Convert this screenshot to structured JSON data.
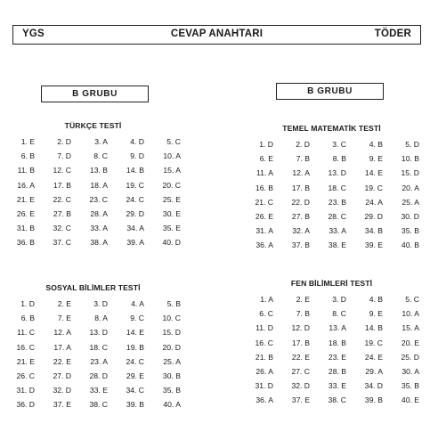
{
  "header": {
    "left": "YGS",
    "center": "CEVAP ANAHTARI",
    "right": "TÖDER"
  },
  "groups": {
    "left": "B GRUBU",
    "right": "B GRUBU"
  },
  "sections": {
    "turkce": {
      "title": "TÜRKÇE TESTİ",
      "answers": [
        "1. E",
        "2. D",
        "3. A",
        "4. D",
        "5. C",
        "6. B",
        "7. D",
        "8. C",
        "9. D",
        "10. A",
        "11. B",
        "12. C",
        "13. B",
        "14. B",
        "15. A",
        "16. A",
        "17. B",
        "18. A",
        "19. C",
        "20. C",
        "21. E",
        "22. C",
        "23. C",
        "24. C",
        "25. E",
        "26. E",
        "27. B",
        "28. A",
        "29. D",
        "30. E",
        "31. B",
        "32. C",
        "33. A",
        "34. A",
        "35. E",
        "36. B",
        "37. C",
        "38. A",
        "39. A",
        "40. D"
      ]
    },
    "matematik": {
      "title": "TEMEL MATEMATİK TESTİ",
      "answers": [
        "1. D",
        "2. D",
        "3. C",
        "4. B",
        "5. D",
        "6. E",
        "7. B",
        "8. B",
        "9. E",
        "10. B",
        "11. A",
        "12. A",
        "13. D",
        "14. E",
        "15. D",
        "16. B",
        "17. B",
        "18. C",
        "19. C",
        "20. A",
        "21. C",
        "22. D",
        "23. B",
        "24. A",
        "25. A",
        "26. E",
        "27. B",
        "28. C",
        "29. D",
        "30. D",
        "31. A",
        "32. A",
        "33. A",
        "34. B",
        "35. B",
        "36. A",
        "37. B",
        "38. E",
        "39. E",
        "40. B"
      ]
    },
    "sosyal": {
      "title": "SOSYAL BİLİMLER TESTİ",
      "answers": [
        "1. D",
        "2. E",
        "3. D",
        "4. A",
        "5. B",
        "6. B",
        "7. E",
        "8. A",
        "9. C",
        "10. C",
        "11. C",
        "12. A",
        "13. D",
        "14. E",
        "15. D",
        "16. C",
        "17. A",
        "18. C",
        "19. B",
        "20. D",
        "21. E",
        "22. E",
        "23. A",
        "24. C",
        "25. A",
        "26. C",
        "27. D",
        "28. D",
        "29. E",
        "30. B",
        "31. D",
        "32. D",
        "33. E",
        "34. C",
        "35. B",
        "36. D",
        "37. E",
        "38. C",
        "39. B",
        "40. A"
      ]
    },
    "fen": {
      "title": "FEN BİLİMLERİ TESTİ",
      "answers": [
        "1. A",
        "2. E",
        "3. D",
        "4. B",
        "5. C",
        "6. C",
        "7. B",
        "8. C",
        "9. E",
        "10. A",
        "11. D",
        "12. D",
        "13. A",
        "14. B",
        "15. A",
        "16. C",
        "17. B",
        "18. B",
        "19. C",
        "20. E",
        "21. B",
        "22. E",
        "23. E",
        "24. E",
        "25. D",
        "26. A",
        "27. C",
        "28. B",
        "29. A",
        "30. A",
        "31. D",
        "32. D",
        "33. E",
        "34. D",
        "35. B",
        "36. A",
        "37. E",
        "38. C",
        "39. B",
        "40. E"
      ]
    }
  }
}
